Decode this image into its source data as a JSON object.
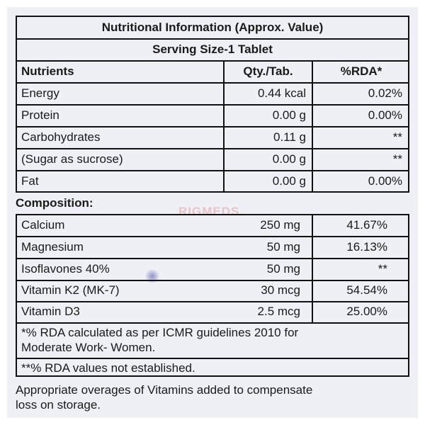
{
  "title": "Nutritional Information (Approx. Value)",
  "serving_size": "Serving Size-1 Tablet",
  "headers": {
    "nutrients": "Nutrients",
    "qty": "Qty./Tab.",
    "rda": "%RDA*"
  },
  "nutrients": [
    {
      "name": "Energy",
      "qty": "0.44 kcal",
      "rda": "0.02%"
    },
    {
      "name": "Protein",
      "qty": "0.00 g",
      "rda": "0.00%"
    },
    {
      "name": "Carbohydrates",
      "qty": "0.11 g",
      "rda": "**"
    },
    {
      "name": "(Sugar as sucrose)",
      "qty": "0.00 g",
      "rda": "**"
    },
    {
      "name": "Fat",
      "qty": "0.00 g",
      "rda": "0.00%"
    }
  ],
  "composition_label": "Composition:",
  "composition": [
    {
      "name": "Calcium",
      "qty": "250 mg",
      "rda": "41.67%"
    },
    {
      "name": "Magnesium",
      "qty": "50 mg",
      "rda": "16.13%"
    },
    {
      "name": "Isoflavones 40%",
      "qty": "50 mg",
      "rda": "**"
    },
    {
      "name": "Vitamin K2 (MK-7)",
      "qty": "30 mcg",
      "rda": "54.54%"
    },
    {
      "name": "Vitamin D3",
      "qty": "2.5 mcg",
      "rda": "25.00%"
    }
  ],
  "footnote1_line1": "*% RDA calculated as per ICMR guidelines 2010 for",
  "footnote1_line2": "Moderate Work- Women.",
  "footnote2": "**% RDA values not established.",
  "note_line1": "Appropriate overages of Vitamins added to compensate",
  "note_line2": "loss on storage.",
  "watermark": "RIGMEDS"
}
